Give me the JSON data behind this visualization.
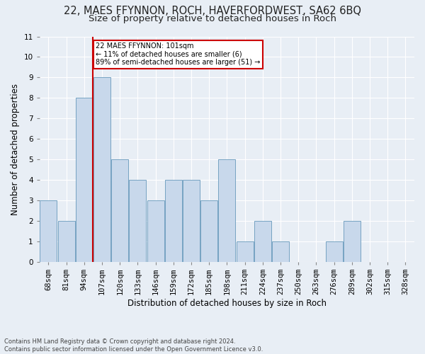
{
  "title": "22, MAES FFYNNON, ROCH, HAVERFORDWEST, SA62 6BQ",
  "subtitle": "Size of property relative to detached houses in Roch",
  "xlabel": "Distribution of detached houses by size in Roch",
  "ylabel": "Number of detached properties",
  "footer_line1": "Contains HM Land Registry data © Crown copyright and database right 2024.",
  "footer_line2": "Contains public sector information licensed under the Open Government Licence v3.0.",
  "categories": [
    "68sqm",
    "81sqm",
    "94sqm",
    "107sqm",
    "120sqm",
    "133sqm",
    "146sqm",
    "159sqm",
    "172sqm",
    "185sqm",
    "198sqm",
    "211sqm",
    "224sqm",
    "237sqm",
    "250sqm",
    "263sqm",
    "276sqm",
    "289sqm",
    "302sqm",
    "315sqm",
    "328sqm"
  ],
  "values": [
    3,
    2,
    8,
    9,
    5,
    4,
    3,
    4,
    4,
    3,
    5,
    1,
    2,
    1,
    0,
    0,
    1,
    2,
    0,
    0,
    0
  ],
  "bar_color": "#c8d8eb",
  "bar_edge_color": "#6699bb",
  "highlight_line_index": 3,
  "highlight_line_color": "#cc0000",
  "annotation_text": "22 MAES FFYNNON: 101sqm\n← 11% of detached houses are smaller (6)\n89% of semi-detached houses are larger (51) →",
  "annotation_box_color": "#cc0000",
  "ylim": [
    0,
    11
  ],
  "yticks": [
    0,
    1,
    2,
    3,
    4,
    5,
    6,
    7,
    8,
    9,
    10,
    11
  ],
  "background_color": "#e8eef5",
  "plot_background": "#e8eef5",
  "grid_color": "#ffffff",
  "title_fontsize": 10.5,
  "subtitle_fontsize": 9.5,
  "label_fontsize": 8.5,
  "tick_fontsize": 7.5,
  "footer_fontsize": 6.0
}
